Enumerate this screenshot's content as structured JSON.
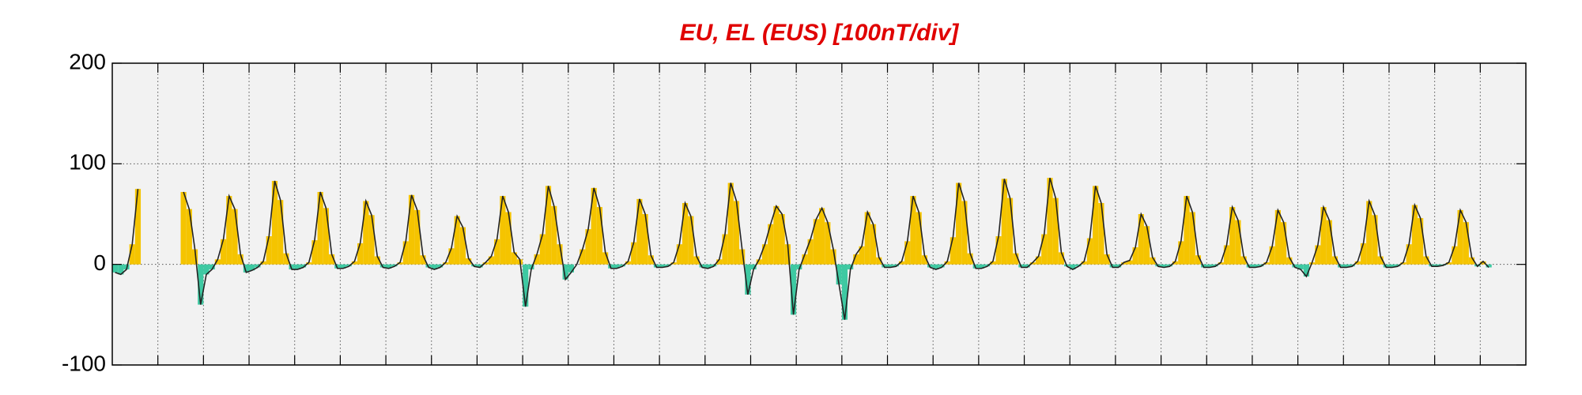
{
  "chart_data": {
    "type": "area",
    "title": "EU, EL (EUS)  [100nT/div]",
    "ylim": [
      -100,
      200
    ],
    "yticks": [
      -100,
      0,
      100,
      200
    ],
    "xlim": [
      0,
      31
    ],
    "xticks": [
      1,
      2,
      3,
      4,
      5,
      6,
      7,
      8,
      9,
      10,
      11,
      12,
      13,
      14,
      15,
      16,
      17,
      18,
      19,
      20,
      21,
      22,
      23,
      24,
      25,
      26,
      27,
      28,
      29,
      30
    ],
    "grid": true,
    "color": "#f5c400",
    "negative_color": "#3ec9a2",
    "line_color": "#222222",
    "x": [
      0,
      0.125,
      0.25,
      0.375,
      0.5,
      0.625,
      0.75,
      0.875,
      1,
      1.125,
      1.25,
      1.375,
      1.5,
      1.625,
      1.75,
      1.875,
      2,
      2.125,
      2.25,
      2.375,
      2.5,
      2.625,
      2.75,
      2.875,
      3,
      3.125,
      3.25,
      3.375,
      3.5,
      3.625,
      3.75,
      3.875,
      4,
      4.125,
      4.25,
      4.375,
      4.5,
      4.625,
      4.75,
      4.875,
      5,
      5.125,
      5.25,
      5.375,
      5.5,
      5.625,
      5.75,
      5.875,
      6,
      6.125,
      6.25,
      6.375,
      6.5,
      6.625,
      6.75,
      6.875,
      7,
      7.125,
      7.25,
      7.375,
      7.5,
      7.625,
      7.75,
      7.875,
      8,
      8.125,
      8.25,
      8.375,
      8.5,
      8.625,
      8.75,
      8.875,
      9,
      9.125,
      9.25,
      9.375,
      9.5,
      9.625,
      9.75,
      9.875,
      10,
      10.125,
      10.25,
      10.375,
      10.5,
      10.625,
      10.75,
      10.875,
      11,
      11.125,
      11.25,
      11.375,
      11.5,
      11.625,
      11.75,
      11.875,
      12,
      12.125,
      12.25,
      12.375,
      12.5,
      12.625,
      12.75,
      12.875,
      13,
      13.125,
      13.25,
      13.375,
      13.5,
      13.625,
      13.75,
      13.875,
      14,
      14.125,
      14.25,
      14.375,
      14.5,
      14.625,
      14.75,
      14.875,
      15,
      15.125,
      15.25,
      15.375,
      15.5,
      15.625,
      15.75,
      15.875,
      16,
      16.125,
      16.25,
      16.375,
      16.5,
      16.625,
      16.75,
      16.875,
      17,
      17.125,
      17.25,
      17.375,
      17.5,
      17.625,
      17.75,
      17.875,
      18,
      18.125,
      18.25,
      18.375,
      18.5,
      18.625,
      18.75,
      18.875,
      19,
      19.125,
      19.25,
      19.375,
      19.5,
      19.625,
      19.75,
      19.875,
      20,
      20.125,
      20.25,
      20.375,
      20.5,
      20.625,
      20.75,
      20.875,
      21,
      21.125,
      21.25,
      21.375,
      21.5,
      21.625,
      21.75,
      21.875,
      22,
      22.125,
      22.25,
      22.375,
      22.5,
      22.625,
      22.75,
      22.875,
      23,
      23.125,
      23.25,
      23.375,
      23.5,
      23.625,
      23.75,
      23.875,
      24,
      24.125,
      24.25,
      24.375,
      24.5,
      24.625,
      24.75,
      24.875,
      25,
      25.125,
      25.25,
      25.375,
      25.5,
      25.625,
      25.75,
      25.875,
      26,
      26.125,
      26.25,
      26.375,
      26.5,
      26.625,
      26.75,
      26.875,
      27,
      27.125,
      27.25,
      27.375,
      27.5,
      27.625,
      27.75,
      27.875,
      28,
      28.125,
      28.25,
      28.375,
      28.5,
      28.625,
      28.75,
      28.875,
      29,
      29.125,
      29.25,
      29.375,
      29.5,
      29.625,
      29.75,
      29.875,
      30,
      30.125
    ],
    "values": [
      -8,
      -10,
      -5,
      20,
      75,
      null,
      null,
      null,
      null,
      null,
      null,
      null,
      72,
      55,
      15,
      -40,
      -10,
      -5,
      5,
      25,
      68,
      55,
      10,
      -8,
      -6,
      -3,
      3,
      28,
      83,
      64,
      11,
      -5,
      -5,
      -3,
      2,
      24,
      72,
      56,
      10,
      -4,
      -4,
      -2,
      3,
      21,
      63,
      49,
      8,
      -3,
      -4,
      -2,
      2,
      23,
      69,
      54,
      9,
      -3,
      -5,
      -3,
      2,
      16,
      48,
      37,
      6,
      -2,
      -3,
      2,
      8,
      25,
      68,
      52,
      12,
      5,
      -42,
      -5,
      10,
      30,
      78,
      58,
      20,
      -15,
      -8,
      0,
      15,
      35,
      76,
      57,
      12,
      -4,
      -4,
      -2,
      3,
      22,
      65,
      50,
      9,
      -3,
      -3,
      -2,
      2,
      20,
      61,
      48,
      8,
      -3,
      -4,
      -2,
      5,
      30,
      81,
      63,
      15,
      -30,
      -5,
      5,
      20,
      40,
      58,
      50,
      20,
      -50,
      -5,
      10,
      25,
      45,
      56,
      42,
      15,
      -20,
      -55,
      -5,
      10,
      18,
      52,
      40,
      7,
      -3,
      -3,
      -2,
      3,
      23,
      68,
      52,
      9,
      -3,
      -5,
      -3,
      3,
      27,
      81,
      63,
      11,
      -4,
      -4,
      -2,
      3,
      28,
      85,
      66,
      11,
      -3,
      -3,
      2,
      8,
      30,
      86,
      66,
      12,
      -2,
      -5,
      -2,
      3,
      26,
      78,
      61,
      10,
      -3,
      -3,
      2,
      4,
      17,
      50,
      38,
      7,
      -2,
      -3,
      -2,
      3,
      23,
      68,
      52,
      9,
      -3,
      -3,
      -2,
      2,
      19,
      57,
      44,
      8,
      -3,
      -3,
      -2,
      2,
      18,
      54,
      42,
      7,
      -3,
      -5,
      -12,
      2,
      19,
      57,
      44,
      8,
      -3,
      -3,
      -2,
      3,
      21,
      63,
      49,
      8,
      -3,
      -3,
      -2,
      2,
      20,
      59,
      46,
      8,
      -2,
      -2,
      -1,
      2,
      18,
      54,
      42,
      7,
      -2,
      3,
      -3
    ]
  }
}
